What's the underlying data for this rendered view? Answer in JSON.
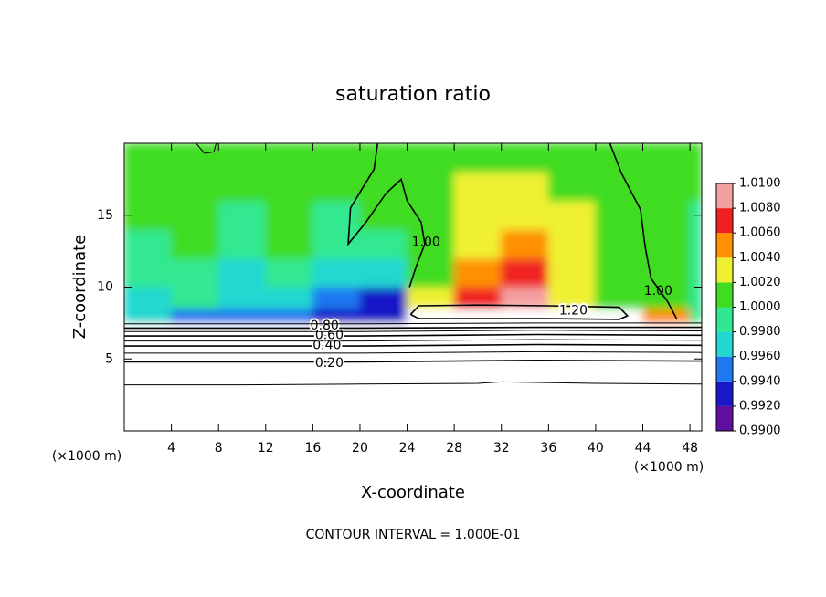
{
  "chart_data": {
    "type": "contour",
    "title": "saturation ratio",
    "xlabel": "X-coordinate",
    "ylabel": "Z-coordinate",
    "yunit": "(×1000 m)",
    "xunit": "(×1000 m)",
    "footer": "CONTOUR INTERVAL = 1.000E-01",
    "xlim": [
      0,
      49
    ],
    "ylim": [
      0,
      20
    ],
    "xticks": [
      4,
      8,
      12,
      16,
      20,
      24,
      28,
      32,
      36,
      40,
      44,
      48
    ],
    "yticks": [
      5,
      10,
      15
    ],
    "xedges": [
      0,
      4,
      8,
      12,
      16,
      20,
      24,
      28,
      32,
      36,
      40,
      44,
      48,
      49
    ],
    "zedges": [
      0,
      7.5,
      8.5,
      10,
      12,
      14,
      16,
      18,
      20
    ],
    "z": [
      [
        0.5,
        0.5,
        0.5,
        0.5,
        0.5,
        0.5,
        0.5,
        0.5,
        0.5,
        0.5,
        0.5,
        0.5,
        0.5
      ],
      [
        0.997,
        0.995,
        0.994,
        0.995,
        0.993,
        0.992,
        1.2,
        1.2,
        1.2,
        1.2,
        1.2,
        1.004,
        0.998
      ],
      [
        0.997,
        0.998,
        0.996,
        0.996,
        0.994,
        0.992,
        1.003,
        1.007,
        1.009,
        1.002,
        1.001,
        1.001,
        0.999
      ],
      [
        0.998,
        0.999,
        0.997,
        0.998,
        0.996,
        0.997,
        1.001,
        1.004,
        1.006,
        1.003,
        1.001,
        1.0,
        0.999
      ],
      [
        0.999,
        1.0,
        0.998,
        1.0,
        0.998,
        0.999,
        1.001,
        1.003,
        1.005,
        1.002,
        1.001,
        1.0,
        0.999
      ],
      [
        1.0,
        1.0,
        0.999,
        1.0,
        0.999,
        1.0,
        1.001,
        1.002,
        1.003,
        1.002,
        1.001,
        1.0,
        0.999
      ],
      [
        1.001,
        1.001,
        1.0,
        1.001,
        1.0,
        1.001,
        1.001,
        1.002,
        1.002,
        1.001,
        1.001,
        1.001,
        1.0
      ],
      [
        1.001,
        1.001,
        1.001,
        1.001,
        1.001,
        1.001,
        1.001,
        1.001,
        1.001,
        1.001,
        1.001,
        1.001,
        1.0
      ]
    ],
    "colorbar": {
      "levels": [
        {
          "value": 0.99,
          "label": "0.9900"
        },
        {
          "value": 0.992,
          "label": "0.9920"
        },
        {
          "value": 0.994,
          "label": "0.9940"
        },
        {
          "value": 0.996,
          "label": "0.9960"
        },
        {
          "value": 0.998,
          "label": "0.9980"
        },
        {
          "value": 1.0,
          "label": "1.0000"
        },
        {
          "value": 1.002,
          "label": "1.0020"
        },
        {
          "value": 1.004,
          "label": "1.0040"
        },
        {
          "value": 1.006,
          "label": "1.0060"
        },
        {
          "value": 1.008,
          "label": "1.0080"
        },
        {
          "value": 1.01,
          "label": "1.0100"
        }
      ],
      "colors": [
        "#6010a0",
        "#1818c8",
        "#1e78f0",
        "#20d8d0",
        "#30e890",
        "#40dc20",
        "#f0f030",
        "#ff9000",
        "#f02020",
        "#f4a0a0"
      ]
    },
    "contours": [
      {
        "level": 0.1,
        "x": [
          0,
          10,
          20,
          30,
          32,
          40,
          49
        ],
        "z": [
          3.2,
          3.2,
          3.25,
          3.3,
          3.4,
          3.3,
          3.25
        ]
      },
      {
        "level": 0.2,
        "label": "0.20",
        "label_x": 17.4,
        "label_z": 4.7,
        "x": [
          0,
          20,
          35,
          49
        ],
        "z": [
          4.8,
          4.8,
          4.9,
          4.85
        ]
      },
      {
        "level": 0.3,
        "x": [
          0,
          20,
          35,
          49
        ],
        "z": [
          5.4,
          5.4,
          5.5,
          5.45
        ]
      },
      {
        "level": 0.4,
        "label": "0.40",
        "label_x": 17.2,
        "label_z": 5.95,
        "x": [
          0,
          20,
          35,
          49
        ],
        "z": [
          5.9,
          5.9,
          6.0,
          5.95
        ]
      },
      {
        "level": 0.5,
        "x": [
          0,
          20,
          35,
          49
        ],
        "z": [
          6.25,
          6.25,
          6.35,
          6.3
        ]
      },
      {
        "level": 0.6,
        "label": "0.60",
        "label_x": 17.4,
        "label_z": 6.65,
        "x": [
          0,
          20,
          35,
          49
        ],
        "z": [
          6.6,
          6.6,
          6.7,
          6.65
        ]
      },
      {
        "level": 0.7,
        "x": [
          0,
          20,
          35,
          49
        ],
        "z": [
          6.9,
          6.9,
          7.0,
          6.95
        ]
      },
      {
        "level": 0.8,
        "label": "0.80",
        "label_x": 17.0,
        "label_z": 7.3,
        "x": [
          0,
          20,
          35,
          49
        ],
        "z": [
          7.15,
          7.15,
          7.2,
          7.2
        ]
      },
      {
        "level": 0.9,
        "x": [
          0,
          20,
          35,
          49
        ],
        "z": [
          7.45,
          7.45,
          7.5,
          7.5
        ]
      },
      {
        "level": 1.2,
        "label": "1.20",
        "label_x": 38.1,
        "label_z": 8.35,
        "x": [
          24.3,
          25,
          30,
          36,
          42,
          42.7,
          42,
          36,
          30,
          25,
          24.3
        ],
        "z": [
          8.1,
          8.7,
          8.75,
          8.7,
          8.6,
          8.0,
          7.75,
          7.8,
          7.8,
          7.8,
          8.1
        ]
      },
      {
        "level": 1.0,
        "label": "1.00",
        "label_x": 25.6,
        "label_z": 13.1,
        "x": [
          21.5,
          21.2,
          20.3,
          19.2,
          19.0,
          20.5,
          22.2,
          23.5,
          24,
          25.2,
          25.5,
          24.8,
          24.2
        ],
        "z": [
          20,
          18.2,
          17,
          15.5,
          13,
          14.5,
          16.5,
          17.5,
          16,
          14.5,
          13,
          11.5,
          10
        ]
      },
      {
        "level": 1.0,
        "label": "1.00",
        "label_x": 45.3,
        "label_z": 9.7,
        "x": [
          41.2,
          42.2,
          43.8,
          44.2,
          44.7,
          46.1,
          46.9
        ],
        "z": [
          20,
          17.9,
          15.4,
          12.8,
          10.6,
          9.0,
          7.75
        ]
      },
      {
        "level": 1.0,
        "x": [
          6.1,
          6.8,
          7.6,
          7.8
        ],
        "z": [
          20,
          19.3,
          19.4,
          20
        ]
      }
    ]
  }
}
